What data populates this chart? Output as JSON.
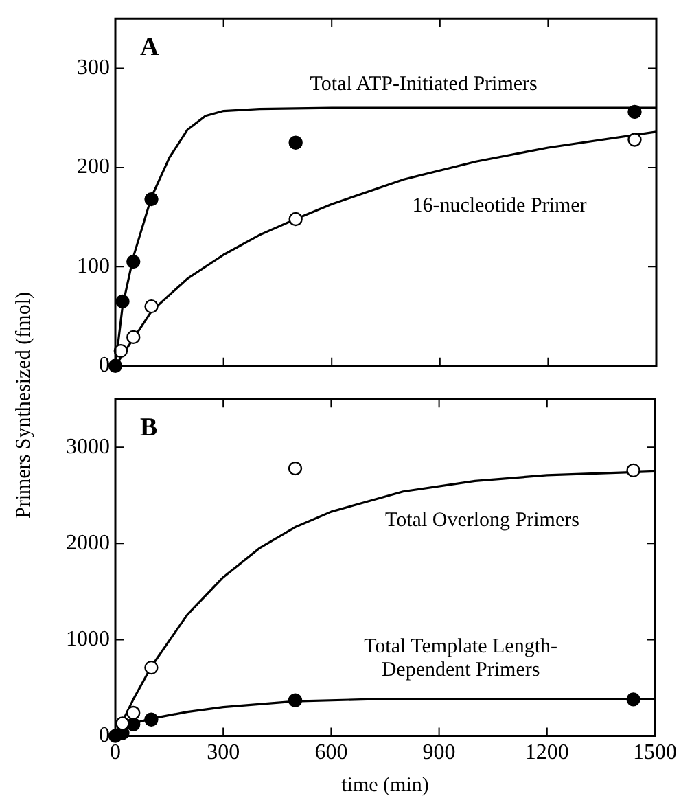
{
  "chart_data": [
    {
      "type": "scatter",
      "title": "A",
      "ylabel": "Primers Synthesized (fmol)",
      "xlim": [
        0,
        1500
      ],
      "xticks": [
        0,
        300,
        600,
        900,
        1200,
        1500
      ],
      "ylim": [
        0,
        350
      ],
      "yticks": [
        0,
        100,
        200,
        300
      ],
      "tick_labels": "y",
      "grid": false,
      "legend": false,
      "series": [
        {
          "type": "line",
          "marker": "none",
          "color": "#000000",
          "x": [
            0,
            20,
            50,
            100,
            150,
            200,
            250,
            300,
            400,
            600,
            1500
          ],
          "values": [
            0,
            60,
            110,
            170,
            210,
            238,
            252,
            257,
            259,
            260,
            260
          ]
        },
        {
          "type": "line",
          "marker": "none",
          "color": "#000000",
          "x": [
            0,
            100,
            200,
            300,
            400,
            500,
            600,
            800,
            1000,
            1200,
            1500
          ],
          "values": [
            0,
            55,
            88,
            112,
            132,
            148,
            163,
            188,
            206,
            220,
            236
          ]
        },
        {
          "type": "scatter",
          "marker": "circle",
          "color": "#000000",
          "x": [
            0,
            20,
            50,
            100,
            500,
            1440
          ],
          "values": [
            0,
            65,
            105,
            168,
            225,
            256
          ]
        },
        {
          "type": "scatter",
          "marker": "circle",
          "color": "#ffffff",
          "x": [
            15,
            50,
            100,
            500,
            1440
          ],
          "values": [
            15,
            29,
            60,
            148,
            228
          ]
        }
      ],
      "annotations": [
        "Total ATP-Initiated Primers",
        "16-nucleotide Primer"
      ]
    },
    {
      "type": "scatter",
      "title": "B",
      "xlabel": "time (min)",
      "xlim": [
        0,
        1500
      ],
      "xticks": [
        0,
        300,
        600,
        900,
        1200,
        1500
      ],
      "ylim": [
        0,
        3500
      ],
      "yticks": [
        0,
        1000,
        2000,
        3000
      ],
      "grid": false,
      "legend": false,
      "series": [
        {
          "type": "line",
          "marker": "none",
          "color": "#000000",
          "x": [
            0,
            50,
            100,
            200,
            300,
            400,
            500,
            600,
            800,
            1000,
            1200,
            1500
          ],
          "values": [
            0,
            380,
            720,
            1260,
            1650,
            1950,
            2170,
            2330,
            2540,
            2650,
            2710,
            2750
          ]
        },
        {
          "type": "line",
          "marker": "none",
          "color": "#000000",
          "x": [
            0,
            50,
            100,
            200,
            300,
            500,
            700,
            1000,
            1500
          ],
          "values": [
            0,
            130,
            180,
            250,
            300,
            360,
            380,
            380,
            380
          ]
        },
        {
          "type": "scatter",
          "marker": "circle",
          "color": "#ffffff",
          "x": [
            20,
            50,
            100,
            500,
            1440
          ],
          "values": [
            130,
            240,
            710,
            2780,
            2760
          ]
        },
        {
          "type": "scatter",
          "marker": "circle",
          "color": "#000000",
          "x": [
            0,
            20,
            50,
            100,
            500,
            1440
          ],
          "values": [
            0,
            30,
            120,
            170,
            370,
            380
          ]
        }
      ],
      "annotations": [
        "Total Overlong Primers",
        "Total Template Length-\nDependent Primers"
      ]
    }
  ]
}
